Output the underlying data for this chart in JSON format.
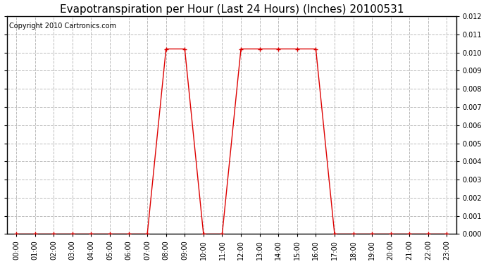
{
  "title": "Evapotranspiration per Hour (Last 24 Hours) (Inches) 20100531",
  "copyright": "Copyright 2010 Cartronics.com",
  "hours": [
    0,
    1,
    2,
    3,
    4,
    5,
    6,
    7,
    8,
    9,
    10,
    11,
    12,
    13,
    14,
    15,
    16,
    17,
    18,
    19,
    20,
    21,
    22,
    23
  ],
  "values": [
    0.0,
    0.0,
    0.0,
    0.0,
    0.0,
    0.0,
    0.0,
    0.0,
    0.0102,
    0.0102,
    0.0,
    0.0,
    0.0102,
    0.0102,
    0.0102,
    0.0102,
    0.0102,
    0.0,
    0.0,
    0.0,
    0.0,
    0.0,
    0.0,
    0.0
  ],
  "line_color": "#dd0000",
  "marker": "+",
  "marker_size": 4,
  "marker_linewidth": 1.0,
  "line_width": 1.0,
  "ylim_min": 0.0,
  "ylim_max": 0.012,
  "ytick_step": 0.001,
  "bg_color": "#ffffff",
  "plot_bg_color": "#ffffff",
  "grid_color": "#bbbbbb",
  "title_fontsize": 11,
  "tick_fontsize": 7,
  "copyright_fontsize": 7
}
